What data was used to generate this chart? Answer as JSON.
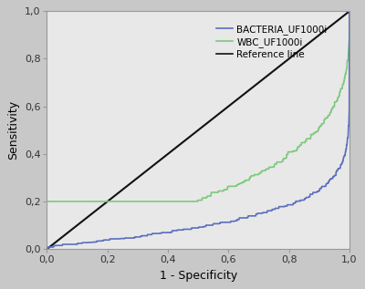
{
  "xlabel": "1 - Specificity",
  "ylabel": "Sensitivity",
  "xlim": [
    0.0,
    1.0
  ],
  "ylim": [
    0.0,
    1.0
  ],
  "xticks": [
    0.0,
    0.2,
    0.4,
    0.6,
    0.8,
    1.0
  ],
  "yticks": [
    0.0,
    0.2,
    0.4,
    0.6,
    0.8,
    1.0
  ],
  "xticklabels": [
    "0,0",
    "0,2",
    "0,4",
    "0,6",
    "0,8",
    "1,0"
  ],
  "yticklabels": [
    "0,0",
    "0,2",
    "0,4",
    "0,6",
    "0,8",
    "1,0"
  ],
  "bacteria_color": "#5b6fbc",
  "wbc_color": "#7dc87d",
  "reference_color": "#111111",
  "legend_labels": [
    "BACTERIA_UF1000i",
    "WBC_UF1000i",
    "Reference line"
  ],
  "plot_bg": "#e8e8e8",
  "fig_bg": "#c8c8c8",
  "tick_fontsize": 8,
  "label_fontsize": 9,
  "legend_fontsize": 7.5,
  "bacteria_exponent": 0.12,
  "wbc_exponent": 0.3,
  "wbc_jump": 0.2
}
